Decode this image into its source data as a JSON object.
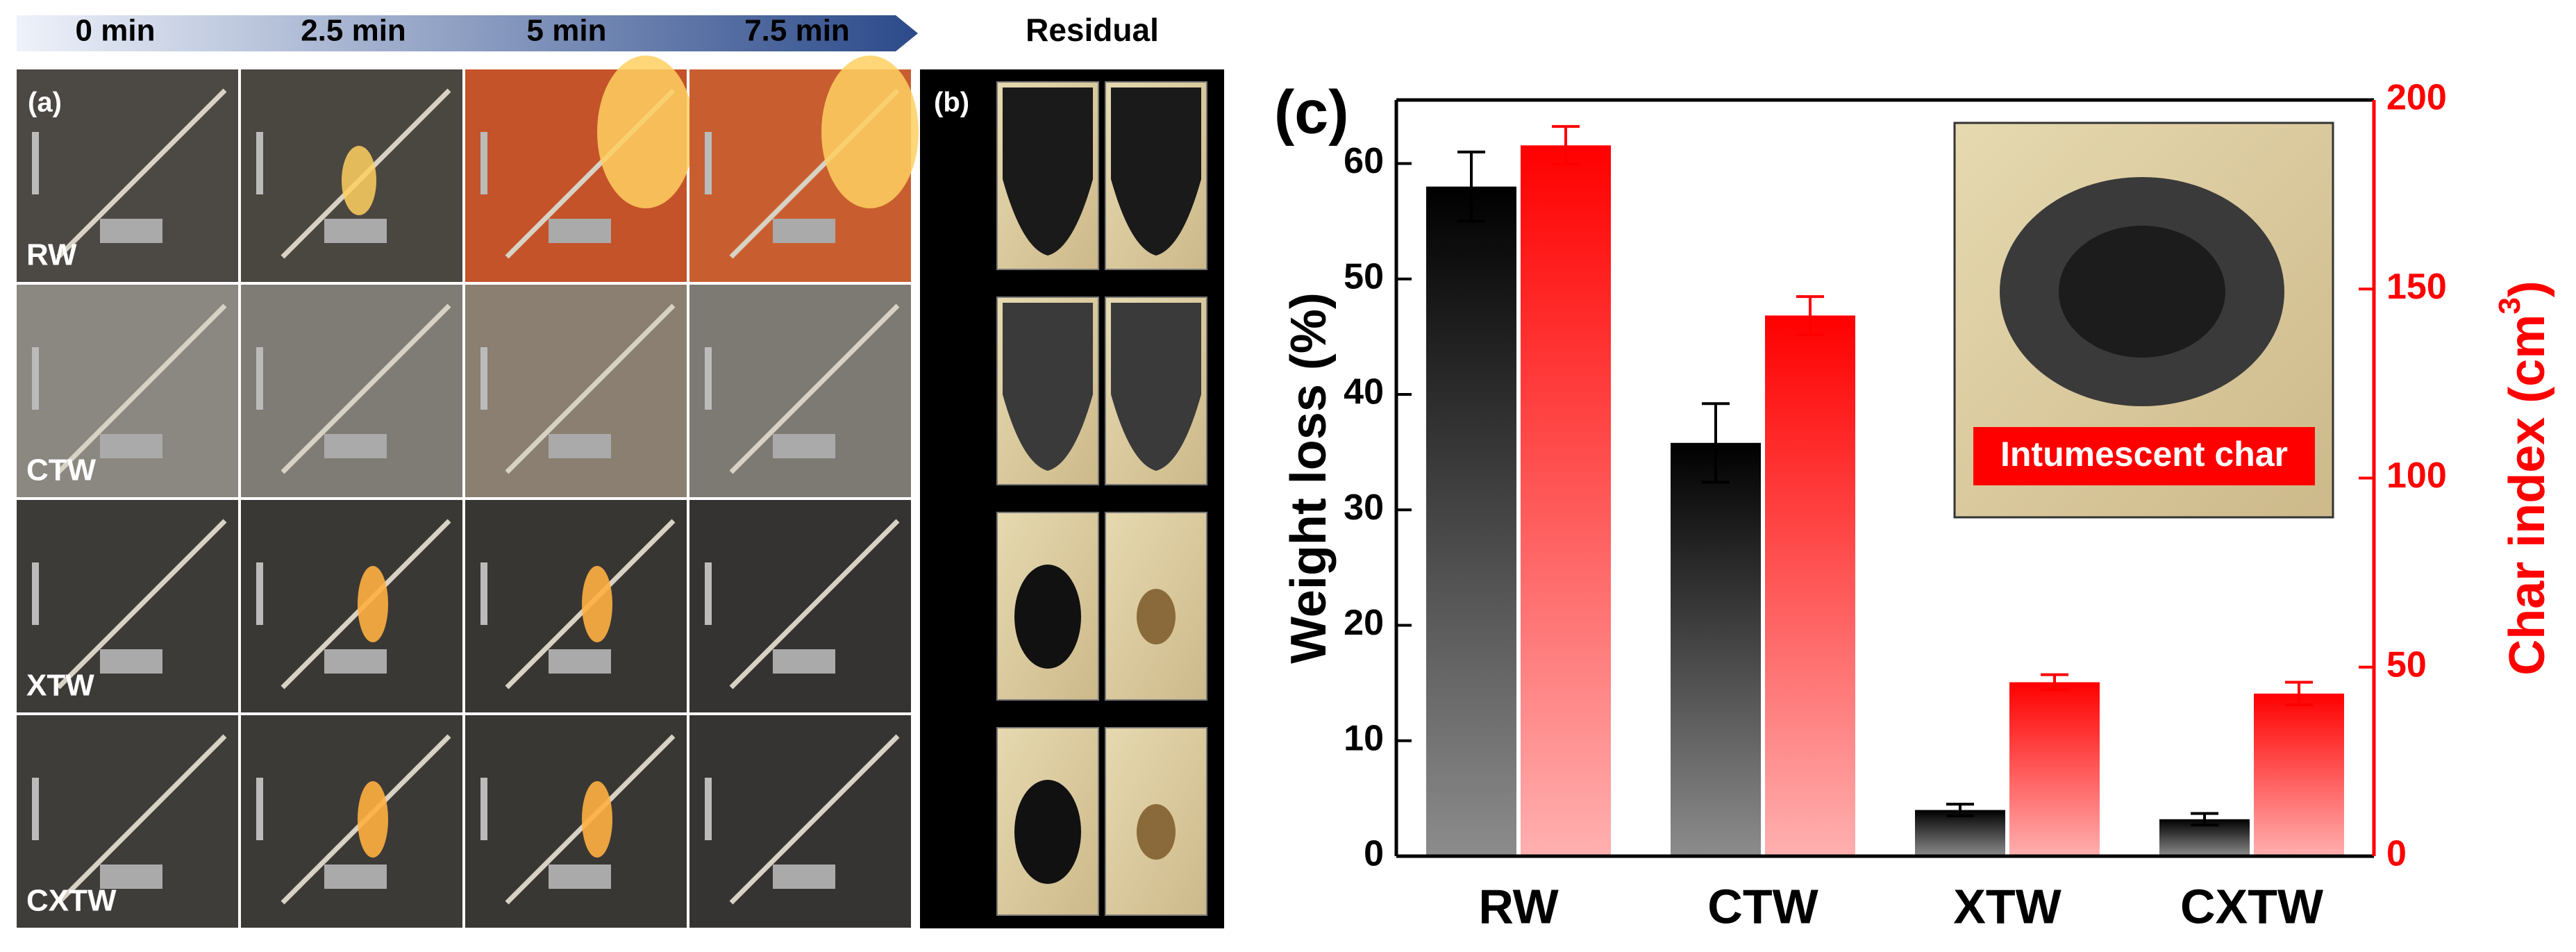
{
  "panel_a": {
    "label": "(a)",
    "times": [
      "0 min",
      "2.5 min",
      "5 min",
      "7.5 min"
    ],
    "rows": [
      "RW",
      "CTW",
      "XTW",
      "CXTW"
    ]
  },
  "panel_b": {
    "label": "(b)",
    "title": "Residual"
  },
  "chart_data": {
    "type": "bar",
    "label": "(c)",
    "categories": [
      "RW",
      "CTW",
      "XTW",
      "CXTW"
    ],
    "ylabel": "Weight loss (%)",
    "y2label": {
      "text": "Char index (cm",
      "sup": "3",
      "end": ")"
    },
    "series": [
      {
        "color": "#000000",
        "values": [
          58,
          35.8,
          4,
          3.2
        ],
        "errors": [
          3,
          3.4,
          0.5,
          0.5
        ]
      },
      {
        "color": "#ff0000",
        "axis": "y2",
        "values": [
          188,
          143,
          46,
          43
        ],
        "errors": [
          5,
          5,
          2,
          3
        ]
      }
    ],
    "ylim": [
      0,
      65.5
    ],
    "yticks": [
      0,
      10,
      20,
      30,
      40,
      50,
      60
    ],
    "y2lim": [
      0,
      200
    ],
    "y2ticks": [
      0,
      50,
      100,
      150,
      200
    ],
    "annotations": [
      "Intumescent char"
    ]
  }
}
